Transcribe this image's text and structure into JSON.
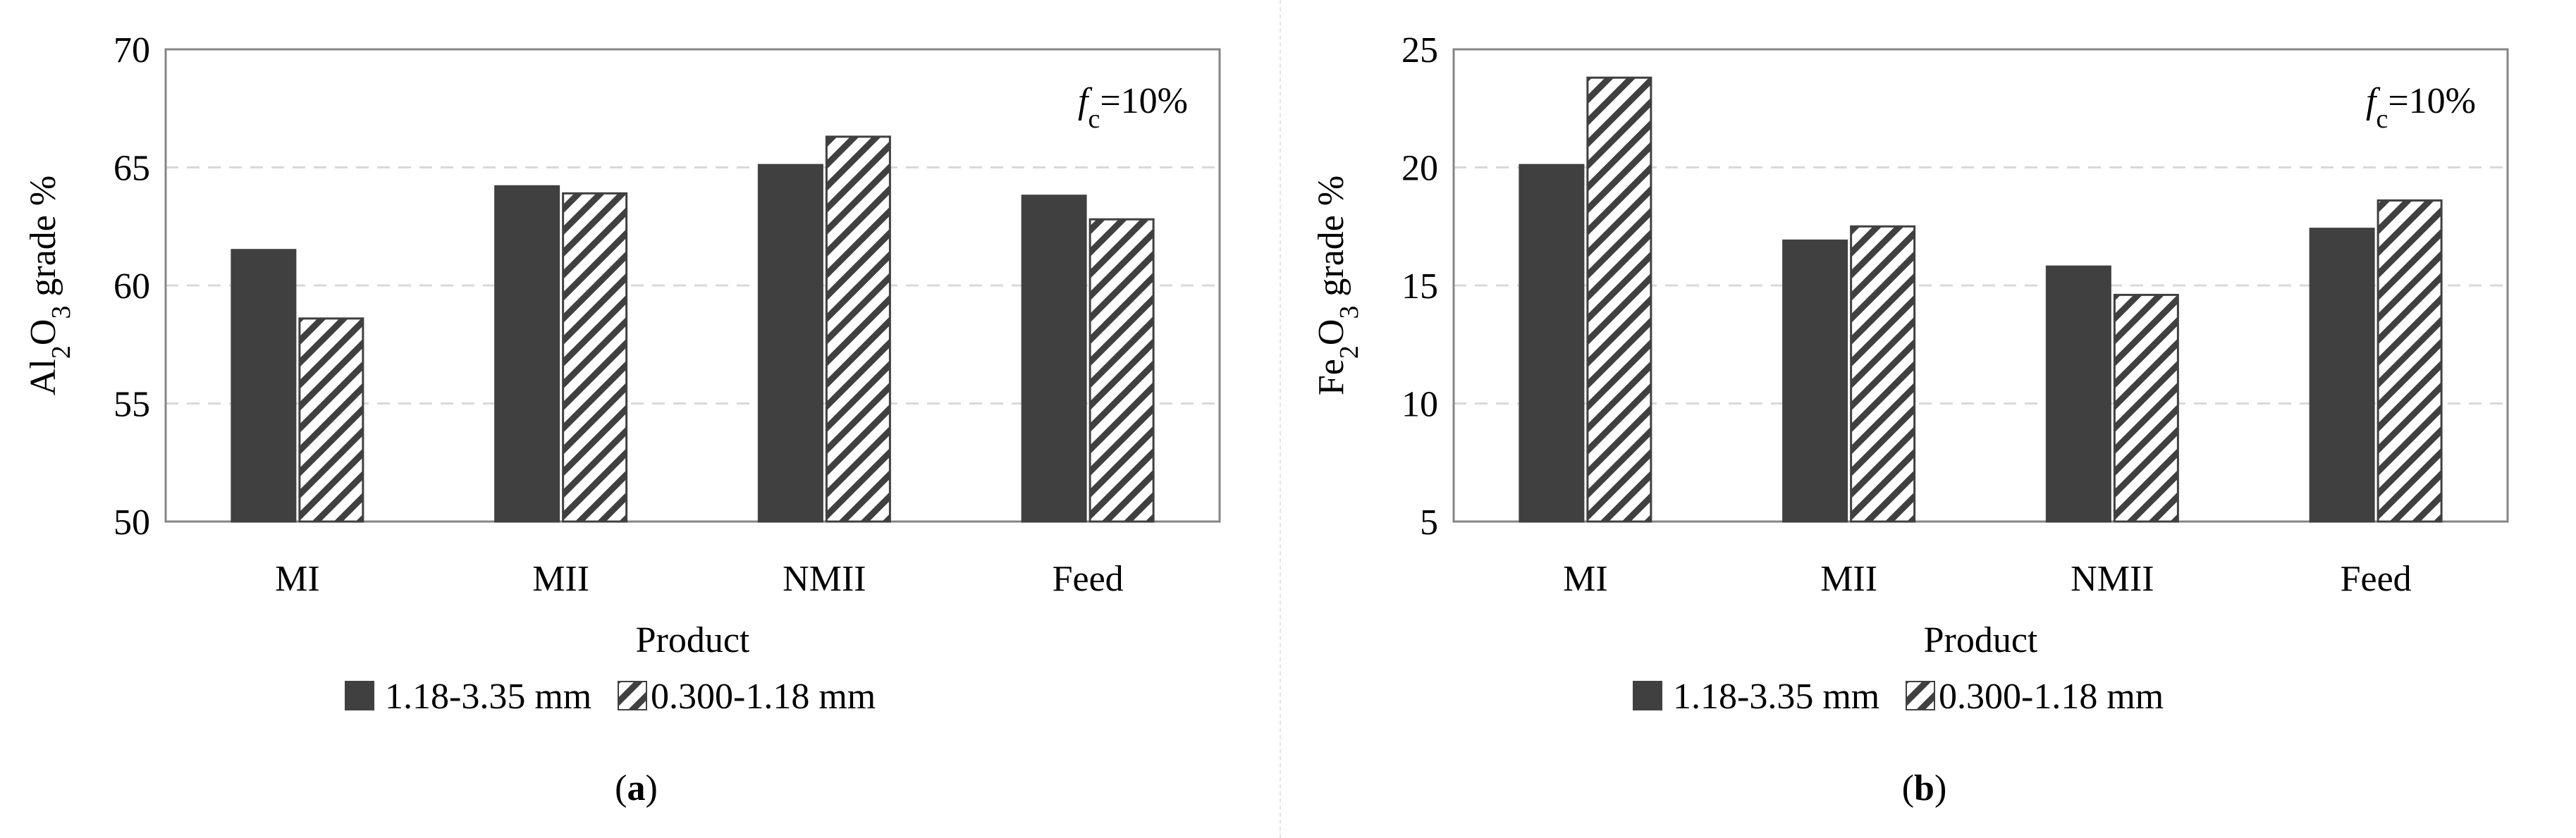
{
  "colors": {
    "solid": "#404040",
    "hatch": "#404040",
    "grid": "#d9d9d9",
    "axis": "#868686"
  },
  "chart_data": [
    {
      "type": "bar",
      "panel_label": "(a)",
      "panel_letter": "a",
      "ylabel": {
        "prefix": "Al",
        "sub1": "2",
        "mid": "O",
        "sub2": "3",
        "suffix": " grade %"
      },
      "xlabel": "Product",
      "categories": [
        "MI",
        "MII",
        "NMII",
        "Feed"
      ],
      "ylim": [
        50,
        70
      ],
      "yticks": [
        "50",
        "55",
        "60",
        "65",
        "70"
      ],
      "annotation": {
        "f": "f",
        "sub": "c",
        "rest": "=10%"
      },
      "series": [
        {
          "name": "1.18-3.35 mm",
          "pattern": "solid",
          "values": [
            61.5,
            64.2,
            65.1,
            63.8
          ]
        },
        {
          "name": "0.300-1.18 mm",
          "pattern": "hatch",
          "values": [
            58.6,
            63.9,
            66.3,
            62.8
          ]
        }
      ]
    },
    {
      "type": "bar",
      "panel_label": "(b)",
      "panel_letter": "b",
      "ylabel": {
        "prefix": "Fe",
        "sub1": "2",
        "mid": "O",
        "sub2": "3",
        "suffix": " grade %"
      },
      "xlabel": "Product",
      "categories": [
        "MI",
        "MII",
        "NMII",
        "Feed"
      ],
      "ylim": [
        5,
        25
      ],
      "yticks": [
        "5",
        "10",
        "15",
        "20",
        "25"
      ],
      "annotation": {
        "f": "f",
        "sub": "c",
        "rest": "=10%"
      },
      "series": [
        {
          "name": "1.18-3.35 mm",
          "pattern": "solid",
          "values": [
            20.1,
            16.9,
            15.8,
            17.4
          ]
        },
        {
          "name": "0.300-1.18 mm",
          "pattern": "hatch",
          "values": [
            23.8,
            17.5,
            14.6,
            18.6
          ]
        }
      ]
    }
  ]
}
